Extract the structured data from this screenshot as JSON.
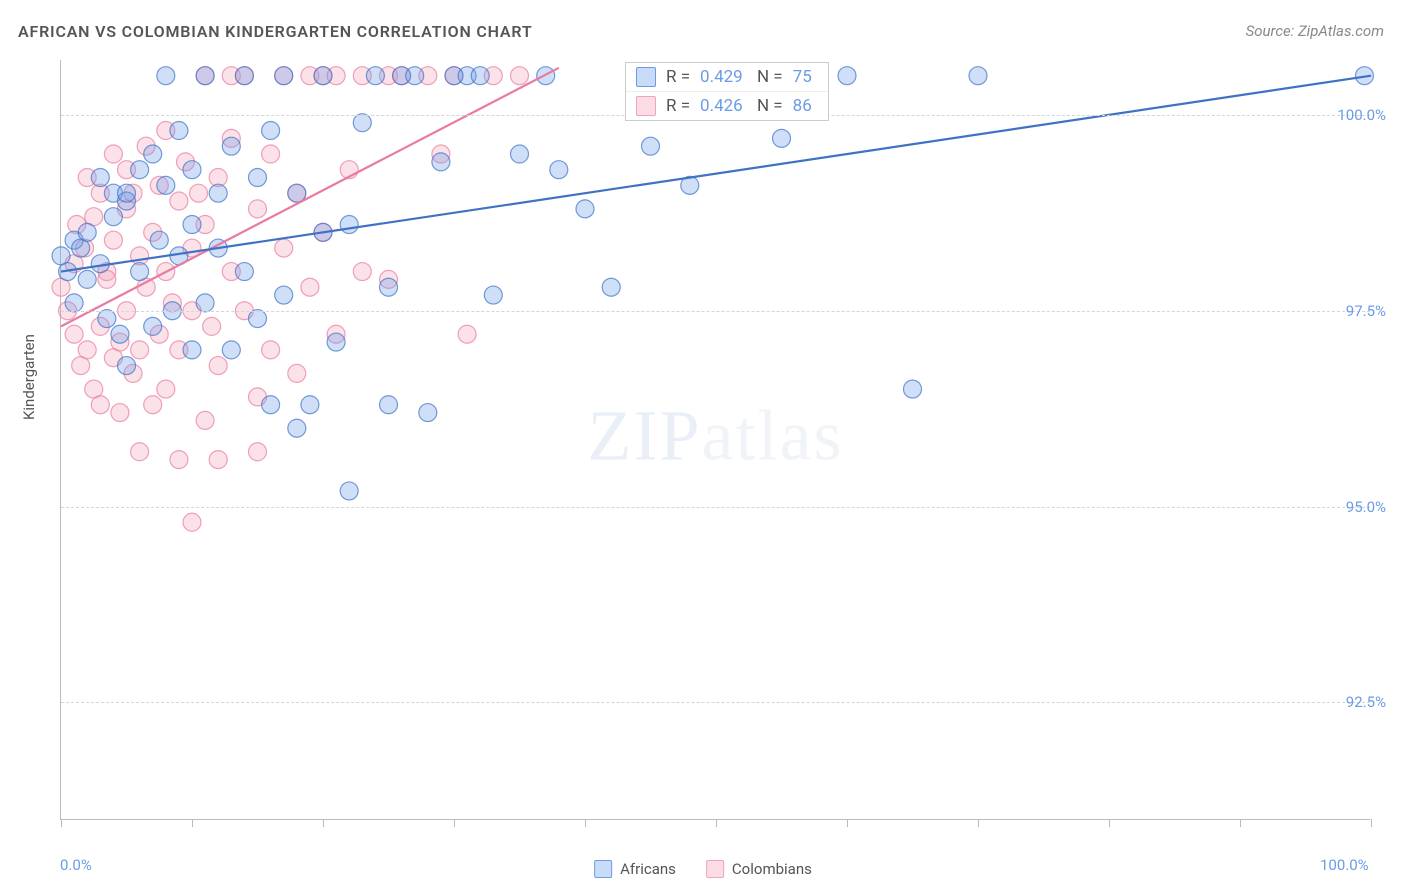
{
  "title": "AFRICAN VS COLOMBIAN KINDERGARTEN CORRELATION CHART",
  "source": "Source: ZipAtlas.com",
  "ylabel": "Kindergarten",
  "watermark": {
    "bold": "ZIP",
    "light": "atlas"
  },
  "chart": {
    "type": "scatter",
    "xlim": [
      0,
      100
    ],
    "ylim": [
      91.0,
      100.7
    ],
    "x_ticks": [
      0,
      10,
      20,
      30,
      40,
      50,
      60,
      70,
      80,
      90,
      100
    ],
    "x_tick_labels": {
      "0": "0.0%",
      "100": "100.0%"
    },
    "y_ticks": [
      92.5,
      95.0,
      97.5,
      100.0
    ],
    "y_tick_labels": [
      "92.5%",
      "95.0%",
      "97.5%",
      "100.0%"
    ],
    "grid_color": "#d5d5d5",
    "axis_color": "#bbbbbb",
    "background_color": "#ffffff",
    "marker_radius": 9,
    "marker_opacity": 0.32,
    "marker_stroke_opacity": 0.7,
    "line_width": 2.2,
    "series": [
      {
        "name": "Africans",
        "color_fill": "#6b9be8",
        "color_stroke": "#3f72c4",
        "R": "0.429",
        "N": "75",
        "trend": {
          "x1": 0,
          "y1": 98.0,
          "x2": 100,
          "y2": 100.5
        },
        "points": [
          [
            0,
            98.2
          ],
          [
            0.5,
            98.0
          ],
          [
            1,
            98.4
          ],
          [
            1,
            97.6
          ],
          [
            1.5,
            98.3
          ],
          [
            2,
            98.5
          ],
          [
            2,
            97.9
          ],
          [
            3,
            98.1
          ],
          [
            3,
            99.2
          ],
          [
            3.5,
            97.4
          ],
          [
            4,
            98.7
          ],
          [
            4,
            99.0
          ],
          [
            4.5,
            97.2
          ],
          [
            5,
            98.9
          ],
          [
            5,
            99.0
          ],
          [
            5,
            96.8
          ],
          [
            6,
            98.0
          ],
          [
            6,
            99.3
          ],
          [
            7,
            99.5
          ],
          [
            7,
            97.3
          ],
          [
            7.5,
            98.4
          ],
          [
            8,
            99.1
          ],
          [
            8,
            100.5
          ],
          [
            8.5,
            97.5
          ],
          [
            9,
            98.2
          ],
          [
            9,
            99.8
          ],
          [
            10,
            97.0
          ],
          [
            10,
            98.6
          ],
          [
            10,
            99.3
          ],
          [
            11,
            100.5
          ],
          [
            11,
            97.6
          ],
          [
            12,
            99.0
          ],
          [
            12,
            98.3
          ],
          [
            13,
            99.6
          ],
          [
            13,
            97.0
          ],
          [
            14,
            98.0
          ],
          [
            14,
            100.5
          ],
          [
            15,
            99.2
          ],
          [
            15,
            97.4
          ],
          [
            16,
            96.3
          ],
          [
            16,
            99.8
          ],
          [
            17,
            97.7
          ],
          [
            17,
            100.5
          ],
          [
            18,
            96.0
          ],
          [
            18,
            99.0
          ],
          [
            19,
            96.3
          ],
          [
            20,
            98.5
          ],
          [
            20,
            100.5
          ],
          [
            21,
            97.1
          ],
          [
            22,
            98.6
          ],
          [
            22,
            95.2
          ],
          [
            23,
            99.9
          ],
          [
            24,
            100.5
          ],
          [
            25,
            96.3
          ],
          [
            25,
            97.8
          ],
          [
            26,
            100.5
          ],
          [
            27,
            100.5
          ],
          [
            28,
            96.2
          ],
          [
            29,
            99.4
          ],
          [
            30,
            100.5
          ],
          [
            31,
            100.5
          ],
          [
            32,
            100.5
          ],
          [
            33,
            97.7
          ],
          [
            35,
            99.5
          ],
          [
            37,
            100.5
          ],
          [
            38,
            99.3
          ],
          [
            40,
            98.8
          ],
          [
            42,
            97.8
          ],
          [
            45,
            99.6
          ],
          [
            48,
            99.1
          ],
          [
            55,
            99.7
          ],
          [
            60,
            100.5
          ],
          [
            65,
            96.5
          ],
          [
            70,
            100.5
          ],
          [
            99.5,
            100.5
          ]
        ]
      },
      {
        "name": "Colombians",
        "color_fill": "#f4a3b8",
        "color_stroke": "#e97aa0",
        "R": "0.426",
        "N": "86",
        "trend": {
          "x1": 0,
          "y1": 97.3,
          "x2": 38,
          "y2": 100.6
        },
        "points": [
          [
            0,
            97.8
          ],
          [
            0.5,
            97.5
          ],
          [
            1,
            98.1
          ],
          [
            1,
            97.2
          ],
          [
            1.2,
            98.6
          ],
          [
            1.5,
            96.8
          ],
          [
            1.8,
            98.3
          ],
          [
            2,
            97.0
          ],
          [
            2,
            99.2
          ],
          [
            2.5,
            96.5
          ],
          [
            2.5,
            98.7
          ],
          [
            3,
            97.3
          ],
          [
            3,
            99.0
          ],
          [
            3,
            96.3
          ],
          [
            3.5,
            98.0
          ],
          [
            3.5,
            97.9
          ],
          [
            4,
            96.9
          ],
          [
            4,
            99.5
          ],
          [
            4,
            98.4
          ],
          [
            4.5,
            97.1
          ],
          [
            4.5,
            96.2
          ],
          [
            5,
            98.8
          ],
          [
            5,
            99.3
          ],
          [
            5,
            97.5
          ],
          [
            5.5,
            96.7
          ],
          [
            5.5,
            99.0
          ],
          [
            6,
            98.2
          ],
          [
            6,
            97.0
          ],
          [
            6,
            95.7
          ],
          [
            6.5,
            99.6
          ],
          [
            6.5,
            97.8
          ],
          [
            7,
            98.5
          ],
          [
            7,
            96.3
          ],
          [
            7.5,
            97.2
          ],
          [
            7.5,
            99.1
          ],
          [
            8,
            98.0
          ],
          [
            8,
            99.8
          ],
          [
            8,
            96.5
          ],
          [
            8.5,
            97.6
          ],
          [
            9,
            98.9
          ],
          [
            9,
            97.0
          ],
          [
            9,
            95.6
          ],
          [
            9.5,
            99.4
          ],
          [
            10,
            98.3
          ],
          [
            10,
            94.8
          ],
          [
            10,
            97.5
          ],
          [
            10.5,
            99.0
          ],
          [
            11,
            96.1
          ],
          [
            11,
            98.6
          ],
          [
            11,
            100.5
          ],
          [
            11.5,
            97.3
          ],
          [
            12,
            99.2
          ],
          [
            12,
            96.8
          ],
          [
            12,
            95.6
          ],
          [
            13,
            98.0
          ],
          [
            13,
            99.7
          ],
          [
            13,
            100.5
          ],
          [
            14,
            97.5
          ],
          [
            14,
            100.5
          ],
          [
            15,
            98.8
          ],
          [
            15,
            96.4
          ],
          [
            15,
            95.7
          ],
          [
            16,
            99.5
          ],
          [
            16,
            97.0
          ],
          [
            17,
            100.5
          ],
          [
            17,
            98.3
          ],
          [
            18,
            99.0
          ],
          [
            18,
            96.7
          ],
          [
            19,
            100.5
          ],
          [
            19,
            97.8
          ],
          [
            20,
            100.5
          ],
          [
            20,
            98.5
          ],
          [
            21,
            100.5
          ],
          [
            21,
            97.2
          ],
          [
            22,
            99.3
          ],
          [
            23,
            100.5
          ],
          [
            23,
            98.0
          ],
          [
            25,
            100.5
          ],
          [
            25,
            97.9
          ],
          [
            26,
            100.5
          ],
          [
            28,
            100.5
          ],
          [
            29,
            99.5
          ],
          [
            30,
            100.5
          ],
          [
            31,
            97.2
          ],
          [
            33,
            100.5
          ],
          [
            35,
            100.5
          ]
        ]
      }
    ]
  },
  "colors": {
    "title": "#555555",
    "source": "#888888",
    "tick_label": "#6b9be8",
    "ylabel": "#555555"
  },
  "legend": {
    "bottom_items": [
      {
        "label": "Africans",
        "fill": "#c8dcf7",
        "stroke": "#6b9be8"
      },
      {
        "label": "Colombians",
        "fill": "#fbdbe4",
        "stroke": "#f4a3b8"
      }
    ]
  }
}
